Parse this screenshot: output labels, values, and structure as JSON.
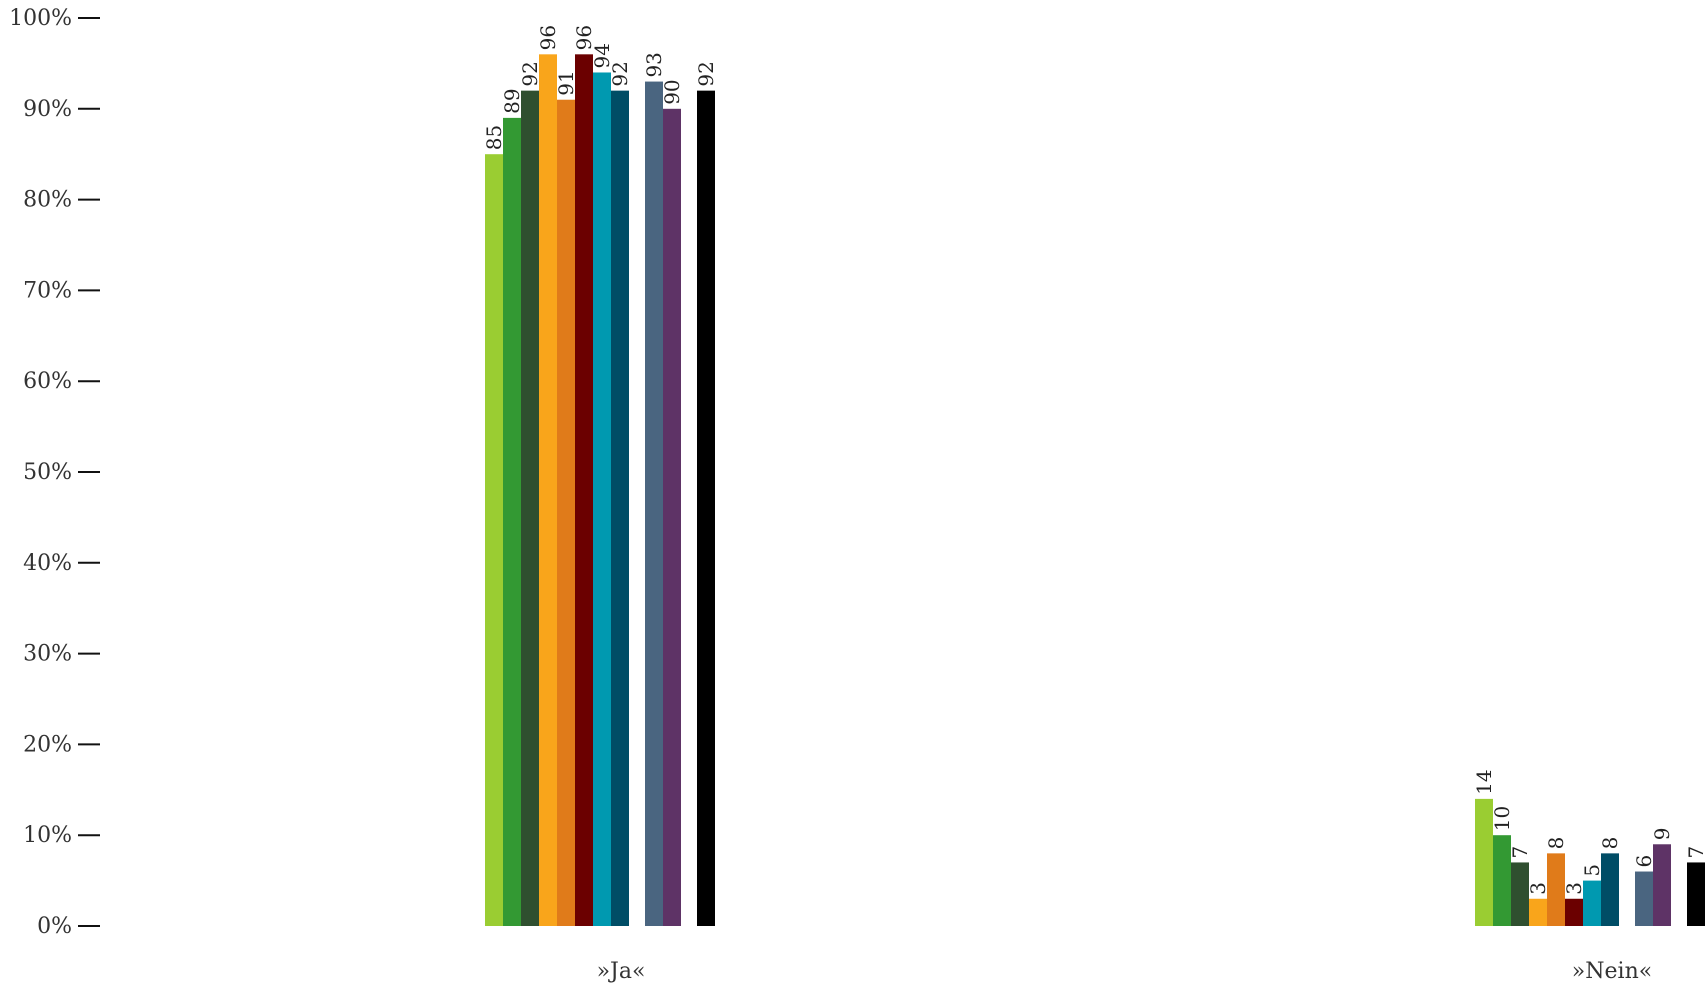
{
  "chart_data": {
    "type": "bar",
    "categories": [
      "»Ja«",
      "»Nein«"
    ],
    "series": [
      {
        "color": "#9acd32",
        "values": [
          85,
          14
        ]
      },
      {
        "color": "#339933",
        "values": [
          89,
          10
        ]
      },
      {
        "color": "#2f4f2f",
        "values": [
          92,
          7
        ]
      },
      {
        "color": "#f9a51b",
        "values": [
          96,
          3
        ]
      },
      {
        "color": "#e07b1a",
        "values": [
          91,
          8
        ]
      },
      {
        "color": "#6b0000",
        "values": [
          96,
          3
        ]
      },
      {
        "color": "#0099b0",
        "values": [
          94,
          5
        ]
      },
      {
        "color": "#004d66",
        "values": [
          92,
          8
        ]
      },
      {
        "color": "#4a6580",
        "values": [
          93,
          6
        ]
      },
      {
        "color": "#5e3366",
        "values": [
          90,
          9
        ]
      },
      {
        "color": "#000000",
        "values": [
          92,
          7
        ]
      }
    ],
    "groups": [
      [
        0,
        1,
        2,
        3,
        4,
        5,
        6,
        7
      ],
      [
        8,
        9
      ],
      [
        10
      ]
    ],
    "yticks": [
      0,
      10,
      20,
      30,
      40,
      50,
      60,
      70,
      80,
      90,
      100
    ],
    "ytick_labels": [
      "0%",
      "10%",
      "20%",
      "30%",
      "40%",
      "50%",
      "60%",
      "70%",
      "80%",
      "90%",
      "100%"
    ],
    "ylim": [
      0,
      100
    ],
    "grid": false,
    "legend": "none"
  }
}
